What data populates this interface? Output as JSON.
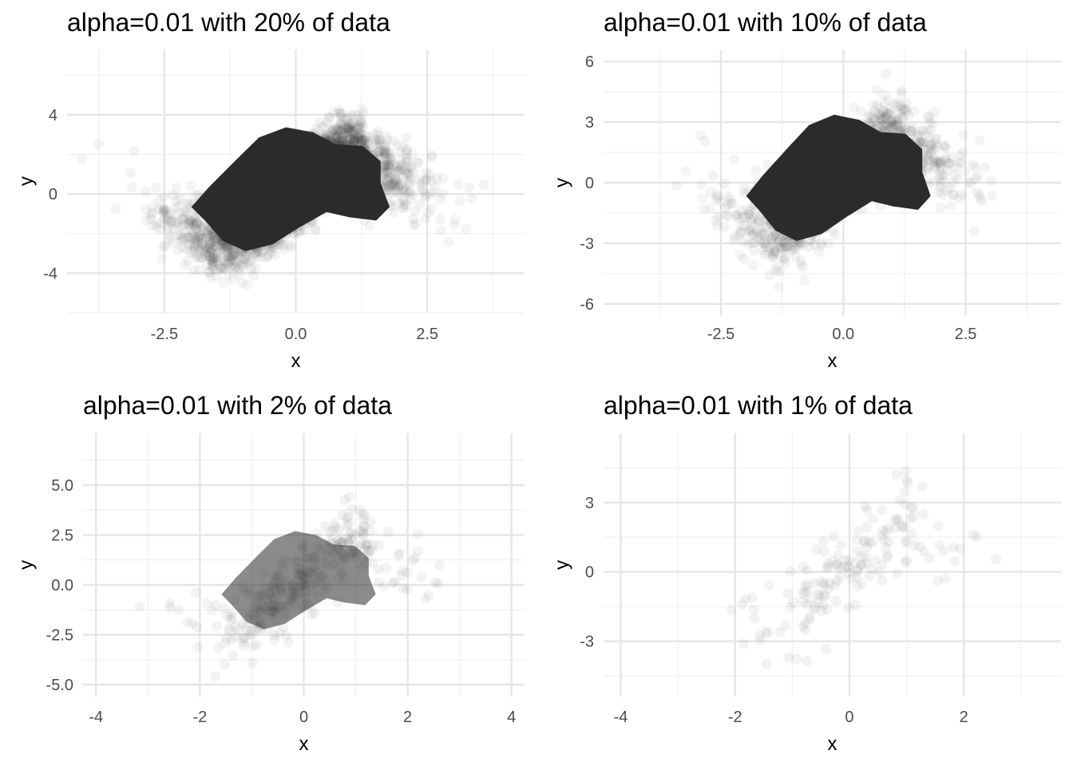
{
  "chart_data": [
    {
      "type": "scatter",
      "title": "alpha=0.01 with 20% of data",
      "xlabel": "x",
      "ylabel": "y",
      "xlim": [
        -4.35,
        4.35
      ],
      "ylim": [
        -6.0,
        7.3
      ],
      "xticks": [
        -2.5,
        0.0,
        2.5
      ],
      "xtick_labels": [
        "-2.5",
        "0.0",
        "2.5"
      ],
      "yticks": [
        -4,
        0,
        4
      ],
      "ytick_labels": [
        "-4",
        "0",
        "4"
      ],
      "grid": true,
      "point_alpha": 0.01,
      "data_fraction": 0.2,
      "color": "#2b2b2b",
      "density_shape": "curved blob",
      "core_dense": true
    },
    {
      "type": "scatter",
      "title": "alpha=0.01 with 10% of data",
      "xlabel": "x",
      "ylabel": "y",
      "xlim": [
        -4.9,
        4.45
      ],
      "ylim": [
        -6.6,
        6.6
      ],
      "xticks": [
        -2.5,
        0.0,
        2.5
      ],
      "xtick_labels": [
        "-2.5",
        "0.0",
        "2.5"
      ],
      "yticks": [
        -6,
        -3,
        0,
        3,
        6
      ],
      "ytick_labels": [
        "-6",
        "-3",
        "0",
        "3",
        "6"
      ],
      "grid": true,
      "point_alpha": 0.01,
      "data_fraction": 0.1,
      "color": "#2b2b2b",
      "density_shape": "curved blob",
      "core_dense": true
    },
    {
      "type": "scatter",
      "title": "alpha=0.01 with 2% of data",
      "xlabel": "x",
      "ylabel": "y",
      "xlim": [
        -4.25,
        4.25
      ],
      "ylim": [
        -5.6,
        7.6
      ],
      "xticks": [
        -4,
        -2,
        0,
        2,
        4
      ],
      "xtick_labels": [
        "-4",
        "-2",
        "0",
        "2",
        "4"
      ],
      "yticks": [
        -5.0,
        -2.5,
        0.0,
        2.5,
        5.0
      ],
      "ytick_labels": [
        "-5.0",
        "-2.5",
        "0.0",
        "2.5",
        "5.0"
      ],
      "grid": true,
      "point_alpha": 0.01,
      "data_fraction": 0.02,
      "color": "#2b2b2b",
      "density_shape": "curved blob",
      "core_dense": false
    },
    {
      "type": "scatter",
      "title": "alpha=0.01 with 1% of data",
      "xlabel": "x",
      "ylabel": "y",
      "xlim": [
        -4.3,
        3.7
      ],
      "ylim": [
        -5.4,
        6.0
      ],
      "xticks": [
        -4,
        -2,
        0,
        2
      ],
      "xtick_labels": [
        "-4",
        "-2",
        "0",
        "2"
      ],
      "yticks": [
        -3,
        0,
        3
      ],
      "ytick_labels": [
        "-3",
        "0",
        "3"
      ],
      "grid": true,
      "point_alpha": 0.01,
      "data_fraction": 0.01,
      "color": "#2b2b2b",
      "density_shape": "curved blob",
      "core_dense": false
    }
  ]
}
